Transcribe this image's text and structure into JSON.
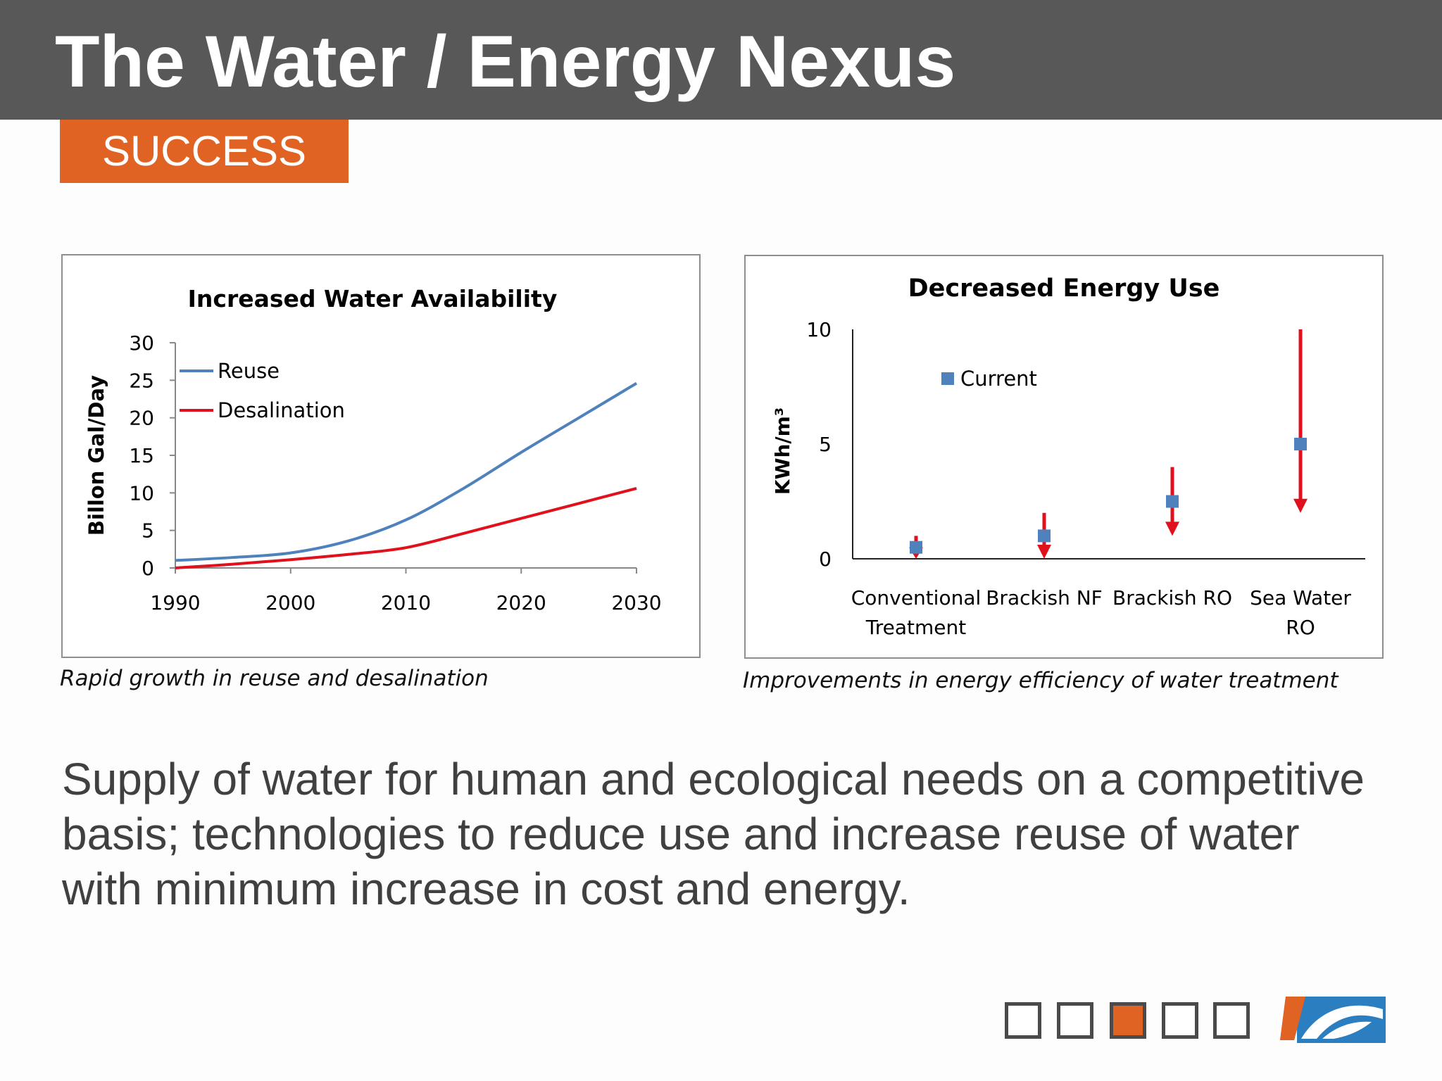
{
  "slide": {
    "title": "The Water / Energy Nexus",
    "badge": "SUCCESS",
    "body": "Supply of water for human and ecological needs on a competitive basis; technologies to reduce use and increase reuse of water with minimum increase in cost and energy.",
    "nav_squares": [
      {
        "active": false
      },
      {
        "active": false
      },
      {
        "active": true
      },
      {
        "active": false
      },
      {
        "active": false
      }
    ],
    "colors": {
      "title_bar": "#585858",
      "accent": "#e06323",
      "reuse": "#4f81bd",
      "desalination": "#e0101c",
      "arrow": "#e0101c",
      "marker": "#4f81bd"
    }
  },
  "captions": {
    "chart1": "Rapid growth in reuse and desalination",
    "chart2": "Improvements in energy efficiency of water treatment"
  },
  "chart_data": [
    {
      "type": "line",
      "title": "Increased Water Availability",
      "xlabel": "",
      "ylabel": "Billon Gal/Day",
      "xlim": [
        1990,
        2030
      ],
      "ylim": [
        0,
        30
      ],
      "x_ticks": [
        "1990",
        "2000",
        "2010",
        "2020",
        "2030"
      ],
      "y_ticks": [
        "0",
        "5",
        "10",
        "15",
        "20",
        "25",
        "30"
      ],
      "legend_position": "top-left",
      "series": [
        {
          "name": "Reuse",
          "color": "#4f81bd",
          "x": [
            1990,
            1995,
            2000,
            2005,
            2010,
            2015,
            2020,
            2025,
            2030
          ],
          "y": [
            1.0,
            1.4,
            2.0,
            3.6,
            6.4,
            10.6,
            15.4,
            20.0,
            24.6
          ]
        },
        {
          "name": "Desalination",
          "color": "#e0101c",
          "x": [
            1990,
            1995,
            2000,
            2005,
            2010,
            2015,
            2020,
            2025,
            2030
          ],
          "y": [
            0.0,
            0.5,
            1.1,
            1.8,
            2.7,
            4.6,
            6.6,
            8.6,
            10.6
          ]
        }
      ]
    },
    {
      "type": "scatter",
      "title": "Decreased Energy Use",
      "xlabel": "",
      "ylabel": "KWh/m³",
      "ylim": [
        0,
        10
      ],
      "y_ticks": [
        "0",
        "5",
        "10"
      ],
      "legend_position": "top-left",
      "categories": [
        [
          "Conventional",
          "Treatment"
        ],
        [
          "Brackish NF"
        ],
        [
          "Brackish RO"
        ],
        [
          "Sea Water",
          "RO"
        ]
      ],
      "series": [
        {
          "name": "Current",
          "color": "#4f81bd",
          "values": [
            0.5,
            1.0,
            2.5,
            5.0
          ]
        }
      ],
      "arrows": [
        {
          "from": 1.0,
          "to": 0.0
        },
        {
          "from": 2.0,
          "to": 0.0
        },
        {
          "from": 4.0,
          "to": 1.0
        },
        {
          "from": 10.0,
          "to": 2.0
        }
      ]
    }
  ]
}
